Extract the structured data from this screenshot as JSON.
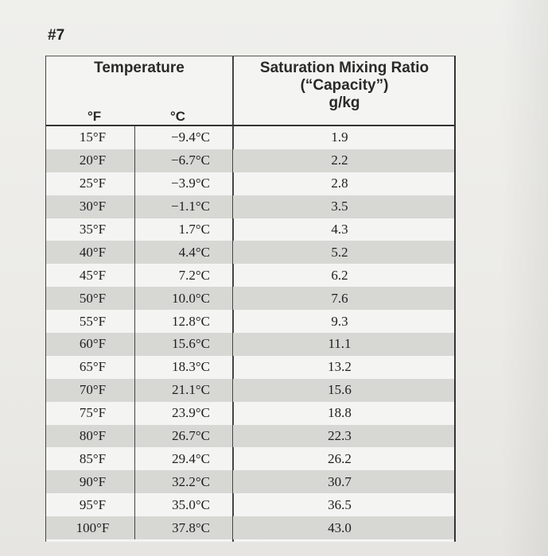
{
  "problem_number": "#7",
  "table": {
    "header_temperature": "Temperature",
    "header_f": "°F",
    "header_c": "°C",
    "header_ratio_line1": "Saturation Mixing Ratio",
    "header_ratio_line2": "(“Capacity”)",
    "header_ratio_line3": "g/kg",
    "rows": [
      {
        "f": "15°F",
        "c": "−9.4°C",
        "ratio": "1.9"
      },
      {
        "f": "20°F",
        "c": "−6.7°C",
        "ratio": "2.2"
      },
      {
        "f": "25°F",
        "c": "−3.9°C",
        "ratio": "2.8"
      },
      {
        "f": "30°F",
        "c": "−1.1°C",
        "ratio": "3.5"
      },
      {
        "f": "35°F",
        "c": "1.7°C",
        "ratio": "4.3"
      },
      {
        "f": "40°F",
        "c": "4.4°C",
        "ratio": "5.2"
      },
      {
        "f": "45°F",
        "c": "7.2°C",
        "ratio": "6.2"
      },
      {
        "f": "50°F",
        "c": "10.0°C",
        "ratio": "7.6"
      },
      {
        "f": "55°F",
        "c": "12.8°C",
        "ratio": "9.3"
      },
      {
        "f": "60°F",
        "c": "15.6°C",
        "ratio": "11.1"
      },
      {
        "f": "65°F",
        "c": "18.3°C",
        "ratio": "13.2"
      },
      {
        "f": "70°F",
        "c": "21.1°C",
        "ratio": "15.6"
      },
      {
        "f": "75°F",
        "c": "23.9°C",
        "ratio": "18.8"
      },
      {
        "f": "80°F",
        "c": "26.7°C",
        "ratio": "22.3"
      },
      {
        "f": "85°F",
        "c": "29.4°C",
        "ratio": "26.2"
      },
      {
        "f": "90°F",
        "c": "32.2°C",
        "ratio": "30.7"
      },
      {
        "f": "95°F",
        "c": "35.0°C",
        "ratio": "36.5"
      },
      {
        "f": "100°F",
        "c": "37.8°C",
        "ratio": "43.0"
      }
    ]
  }
}
